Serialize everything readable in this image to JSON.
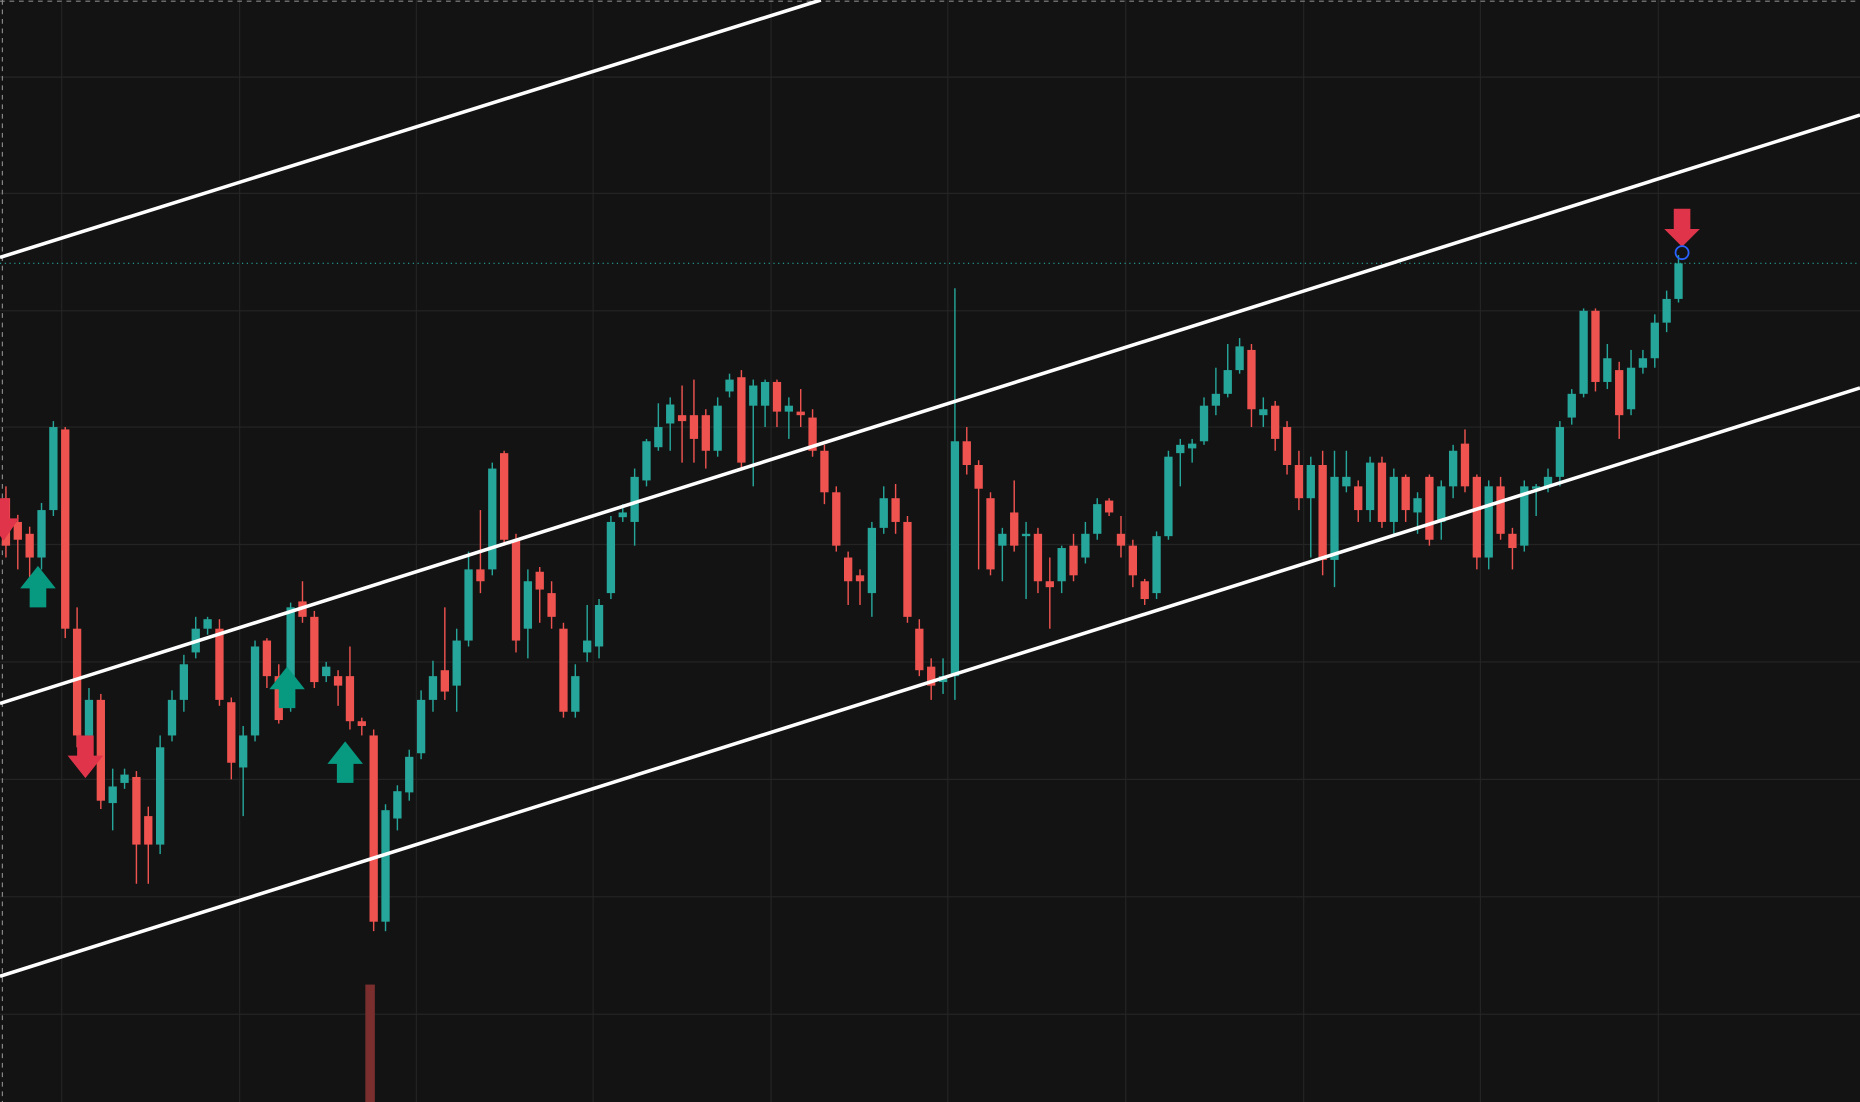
{
  "chart_data": {
    "type": "candlestick",
    "up_color": "#26a69a",
    "down_color": "#ef5350",
    "ylim": [
      71,
      1000
    ],
    "open": [
      580,
      560,
      550,
      530,
      570,
      638,
      470,
      380,
      410,
      323,
      340,
      345,
      312,
      288,
      380,
      410,
      450,
      470,
      470,
      408,
      353,
      380,
      460,
      430,
      405,
      493,
      480,
      430,
      430,
      430,
      392,
      380,
      223,
      310,
      332,
      365,
      410,
      435,
      422,
      460,
      520,
      520,
      618,
      545,
      470,
      518,
      500,
      470,
      400,
      450,
      455,
      500,
      564,
      560,
      595,
      623,
      643,
      650,
      650,
      650,
      620,
      670,
      682,
      658,
      658,
      678,
      653,
      653,
      648,
      620,
      585,
      530,
      515,
      500,
      555,
      580,
      560,
      470,
      438,
      425,
      430,
      628,
      608,
      580,
      540,
      568,
      548,
      550,
      510,
      510,
      540,
      530,
      550,
      578,
      550,
      540,
      510,
      500,
      548,
      618,
      622,
      628,
      658,
      668,
      688,
      705,
      650,
      658,
      640,
      608,
      580,
      608,
      528,
      590,
      590,
      570,
      610,
      560,
      598,
      568,
      598,
      560,
      590,
      626,
      598,
      530,
      590,
      550,
      540,
      588,
      590,
      598,
      648,
      668,
      738,
      678,
      688,
      655,
      690,
      698,
      728,
      748
    ],
    "high": [
      590,
      566,
      556,
      576,
      645,
      640,
      488,
      420,
      415,
      352,
      352,
      350,
      320,
      380,
      418,
      448,
      480,
      480,
      478,
      412,
      388,
      460,
      462,
      440,
      492,
      510,
      485,
      442,
      435,
      455,
      395,
      385,
      322,
      338,
      368,
      418,
      443,
      488,
      470,
      535,
      570,
      610,
      620,
      550,
      520,
      522,
      510,
      475,
      440,
      490,
      495,
      565,
      575,
      605,
      630,
      660,
      665,
      675,
      680,
      655,
      665,
      685,
      688,
      680,
      680,
      680,
      665,
      672,
      655,
      625,
      590,
      535,
      520,
      560,
      590,
      592,
      565,
      478,
      445,
      445,
      757,
      640,
      612,
      585,
      555,
      595,
      560,
      555,
      530,
      540,
      550,
      560,
      580,
      580,
      565,
      545,
      512,
      552,
      620,
      630,
      630,
      665,
      690,
      710,
      715,
      710,
      665,
      662,
      645,
      620,
      615,
      620,
      620,
      620,
      595,
      615,
      615,
      605,
      600,
      585,
      600,
      595,
      625,
      638,
      600,
      595,
      598,
      555,
      595,
      592,
      605,
      645,
      672,
      740,
      740,
      710,
      695,
      705,
      705,
      735,
      755,
      785
    ],
    "low": [
      530,
      520,
      505,
      520,
      565,
      462,
      370,
      375,
      318,
      300,
      335,
      255,
      255,
      280,
      375,
      400,
      445,
      465,
      405,
      343,
      312,
      375,
      420,
      390,
      400,
      475,
      420,
      425,
      405,
      385,
      380,
      215,
      215,
      300,
      325,
      360,
      400,
      410,
      400,
      455,
      500,
      515,
      540,
      450,
      445,
      475,
      470,
      395,
      395,
      442,
      445,
      495,
      560,
      540,
      590,
      620,
      620,
      610,
      610,
      605,
      615,
      665,
      605,
      590,
      640,
      640,
      630,
      640,
      615,
      575,
      535,
      490,
      490,
      480,
      550,
      550,
      475,
      430,
      410,
      415,
      410,
      600,
      520,
      515,
      510,
      535,
      495,
      500,
      470,
      500,
      510,
      525,
      545,
      565,
      530,
      505,
      490,
      495,
      545,
      590,
      610,
      625,
      650,
      665,
      685,
      640,
      640,
      620,
      600,
      570,
      530,
      515,
      505,
      585,
      560,
      560,
      555,
      550,
      560,
      550,
      540,
      545,
      580,
      585,
      520,
      520,
      545,
      520,
      535,
      565,
      585,
      590,
      642,
      665,
      670,
      672,
      630,
      650,
      685,
      690,
      720,
      745
    ],
    "close": [
      540,
      545,
      530,
      570,
      640,
      470,
      380,
      410,
      325,
      337,
      347,
      288,
      288,
      370,
      410,
      440,
      470,
      478,
      410,
      357,
      380,
      455,
      430,
      393,
      488,
      480,
      425,
      438,
      422,
      392,
      388,
      223,
      317,
      333,
      362,
      410,
      430,
      417,
      460,
      520,
      510,
      605,
      545,
      460,
      510,
      503,
      480,
      400,
      430,
      460,
      490,
      560,
      568,
      598,
      628,
      640,
      659,
      645,
      630,
      620,
      658,
      680,
      610,
      675,
      678,
      653,
      658,
      650,
      620,
      585,
      540,
      510,
      510,
      555,
      580,
      560,
      480,
      435,
      422,
      430,
      628,
      608,
      588,
      520,
      550,
      540,
      550,
      510,
      505,
      538,
      515,
      550,
      575,
      568,
      540,
      515,
      495,
      548,
      615,
      625,
      626,
      658,
      668,
      688,
      708,
      655,
      655,
      630,
      608,
      580,
      608,
      528,
      598,
      598,
      570,
      610,
      560,
      598,
      570,
      580,
      545,
      590,
      620,
      590,
      530,
      590,
      550,
      538,
      590,
      590,
      598,
      640,
      668,
      738,
      678,
      698,
      650,
      690,
      698,
      728,
      748,
      778
    ]
  }
}
